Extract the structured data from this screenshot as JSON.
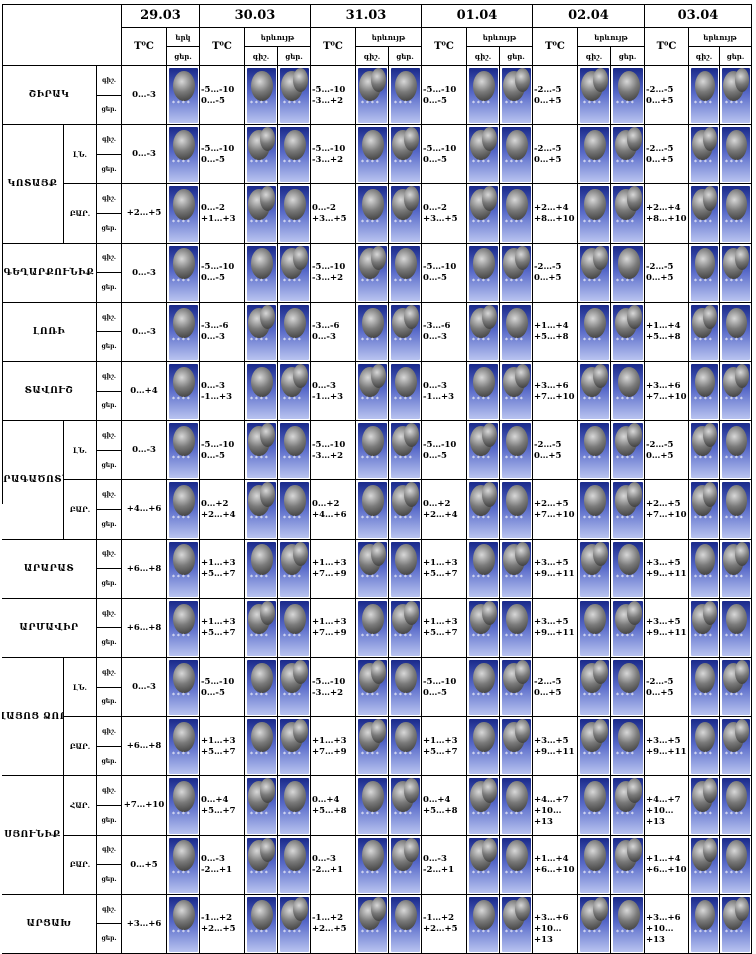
{
  "columns": {
    "dates": [
      "29.03",
      "30.03",
      "31.03",
      "01.04",
      "02.04",
      "03.04"
    ],
    "temp_label": "T⁰C",
    "wx_label": "երկ",
    "wx_label_full": "երևույթ",
    "night_label": "գիշ.",
    "day_label": "ցեր."
  },
  "row_labels": {
    "night": "գիշ.",
    "day": "ցեր.",
    "low": "ԼՆ.",
    "high": "ԲԱՐ.",
    "hat": "ՀԱՐ."
  },
  "regions": [
    {
      "name": "ՇԻՐԱԿ",
      "sub": [
        {
          "label": "",
          "rows": [
            {
              "r": "գիշ.",
              "t": [
                "",
                "-5…-10",
                "-5…-10",
                "-5…-10",
                "-2…-5",
                "-2…-5"
              ]
            },
            {
              "r": "ցեր.",
              "t": [
                "0…-3",
                "0…-5",
                "-3…+2",
                "0…-5",
                "0…+5",
                "0…+5"
              ]
            }
          ]
        }
      ]
    },
    {
      "name": "ԿՈՏԱՅՔ",
      "sub": [
        {
          "label": "ԼՆ.",
          "rows": [
            {
              "r": "գիշ.",
              "t": [
                "",
                "-5…-10",
                "-5…-10",
                "-5…-10",
                "-2…-5",
                "-2…-5"
              ]
            },
            {
              "r": "ցեր.",
              "t": [
                "0…-3",
                "0…-5",
                "-3…+2",
                "0…-5",
                "0…+5",
                "0…+5"
              ]
            }
          ]
        },
        {
          "label": "ԲԱՐ.",
          "rows": [
            {
              "r": "գիշ.",
              "t": [
                "",
                "0…-2",
                "0…-2",
                "0…-2",
                "+2…+4",
                "+2…+4"
              ]
            },
            {
              "r": "ցեր.",
              "t": [
                "+2…+5",
                "+1…+3",
                "+3…+5",
                "+3…+5",
                "+8…+10",
                "+8…+10"
              ]
            }
          ]
        }
      ]
    },
    {
      "name": "ԳԵՂԱՐՔՈՒՆԻՔ",
      "sub": [
        {
          "label": "",
          "rows": [
            {
              "r": "գիշ.",
              "t": [
                "",
                "-5…-10",
                "-5…-10",
                "-5…-10",
                "-2…-5",
                "-2…-5"
              ]
            },
            {
              "r": "ցեր.",
              "t": [
                "0…-3",
                "0…-5",
                "-3…+2",
                "0…-5",
                "0…+5",
                "0…+5"
              ]
            }
          ]
        }
      ]
    },
    {
      "name": "ԼՈՌԻ",
      "sub": [
        {
          "label": "",
          "rows": [
            {
              "r": "գիշ.",
              "t": [
                "",
                "-3…-6",
                "-3…-6",
                "-3…-6",
                "+1…+4",
                "+1…+4"
              ]
            },
            {
              "r": "ցեր.",
              "t": [
                "0…-3",
                "0…-3",
                "0…-3",
                "0…-3",
                "+5…+8",
                "+5…+8"
              ]
            }
          ]
        }
      ]
    },
    {
      "name": "ՏԱՎՈՒՇ",
      "sub": [
        {
          "label": "",
          "rows": [
            {
              "r": "գիշ.",
              "t": [
                "",
                "0…-3",
                "0…-3",
                "0…-3",
                "+3…+6",
                "+3…+6"
              ]
            },
            {
              "r": "ցեր.",
              "t": [
                "0…+4",
                "-1…+3",
                "-1…+3",
                "-1…+3",
                "+7…+10",
                "+7…+10"
              ]
            }
          ]
        }
      ]
    },
    {
      "name": "ԱՐԱԳԱԾՈՏՆ",
      "sub": [
        {
          "label": "ԼՆ.",
          "rows": [
            {
              "r": "գիշ.",
              "t": [
                "",
                "-5…-10",
                "-5…-10",
                "-5…-10",
                "-2…-5",
                "-2…-5"
              ]
            },
            {
              "r": "ցեր.",
              "t": [
                "0…-3",
                "0…-5",
                "-3…+2",
                "0…-5",
                "0…+5",
                "0…+5"
              ]
            }
          ]
        },
        {
          "label": "ԲԱՐ.",
          "rows": [
            {
              "r": "գիշ.",
              "t": [
                "",
                "0…+2",
                "0…+2",
                "0…+2",
                "+2…+5",
                "+2…+5"
              ]
            },
            {
              "r": "ցեր.",
              "t": [
                "+4…+6",
                "+2…+4",
                "+4…+6",
                "+2…+4",
                "+7…+10",
                "+7…+10"
              ]
            }
          ]
        }
      ]
    },
    {
      "name": "ԱՐԱՐԱՏ",
      "sub": [
        {
          "label": "",
          "rows": [
            {
              "r": "գիշ.",
              "t": [
                "",
                "+1…+3",
                "+1…+3",
                "+1…+3",
                "+3…+5",
                "+3…+5"
              ]
            },
            {
              "r": "ցեր.",
              "t": [
                "+6…+8",
                "+5…+7",
                "+7…+9",
                "+5…+7",
                "+9…+11",
                "+9…+11"
              ]
            }
          ]
        }
      ]
    },
    {
      "name": "ԱՐՄԱՎԻՐ",
      "sub": [
        {
          "label": "",
          "rows": [
            {
              "r": "գիշ.",
              "t": [
                "",
                "+1…+3",
                "+1…+3",
                "+1…+3",
                "+3…+5",
                "+3…+5"
              ]
            },
            {
              "r": "ցեր.",
              "t": [
                "+6…+8",
                "+5…+7",
                "+7…+9",
                "+5…+7",
                "+9…+11",
                "+9…+11"
              ]
            }
          ]
        }
      ]
    },
    {
      "name": "ՎԱՅՈՑ ՁՈՐ",
      "sub": [
        {
          "label": "ԼՆ.",
          "rows": [
            {
              "r": "գիշ.",
              "t": [
                "",
                "-5…-10",
                "-5…-10",
                "-5…-10",
                "-2…-5",
                "-2…-5"
              ]
            },
            {
              "r": "ցեր.",
              "t": [
                "0…-3",
                "0…-5",
                "-3…+2",
                "0…-5",
                "0…+5",
                "0…+5"
              ]
            }
          ]
        },
        {
          "label": "ԲԱՐ.",
          "rows": [
            {
              "r": "գիշ.",
              "t": [
                "",
                "+1…+3",
                "+1…+3",
                "+1…+3",
                "+3…+5",
                "+3…+5"
              ]
            },
            {
              "r": "ցեր.",
              "t": [
                "+6…+8",
                "+5…+7",
                "+7…+9",
                "+5…+7",
                "+9…+11",
                "+9…+11"
              ]
            }
          ]
        }
      ]
    },
    {
      "name": "ՍՅՈՒՆԻՔ",
      "sub": [
        {
          "label": "ՀԱՐ.",
          "rows": [
            {
              "r": "գիշ.",
              "t": [
                "",
                "0…+4",
                "0…+4",
                "0…+4",
                "+4…+7",
                "+4…+7"
              ]
            },
            {
              "r": "ցեր.",
              "t": [
                "+7…+10",
                "+5…+7",
                "+5…+8",
                "+5…+8",
                "+10…+13",
                "+10…+13"
              ]
            }
          ]
        },
        {
          "label": "ԲԱՐ.",
          "rows": [
            {
              "r": "գիշ.",
              "t": [
                "",
                "0…-3",
                "0…-3",
                "0…-3",
                "+1…+4",
                "+1…+4"
              ]
            },
            {
              "r": "ցեր.",
              "t": [
                "0…+5",
                "-2…+1",
                "-2…+1",
                "-2…+1",
                "+6…+10",
                "+6…+10"
              ]
            }
          ]
        }
      ]
    },
    {
      "name": "ԱՐՑԱԽ",
      "sub": [
        {
          "label": "",
          "rows": [
            {
              "r": "գիշ.",
              "t": [
                "",
                "-1…+2",
                "-1…+2",
                "-1…+2",
                "+3…+6",
                "+3…+6"
              ]
            },
            {
              "r": "ցեր.",
              "t": [
                "+3…+6",
                "+2…+5",
                "+2…+5",
                "+2…+5",
                "+10…+13",
                "+10…+13"
              ]
            }
          ]
        }
      ]
    }
  ],
  "colors": {
    "sky_top": "#1a2a8a",
    "sky_bottom": "#b9c4f0",
    "cloud": "#6a6a6a",
    "grid": "#000000"
  },
  "icons": {
    "weather": "snow-cloud-icon"
  }
}
